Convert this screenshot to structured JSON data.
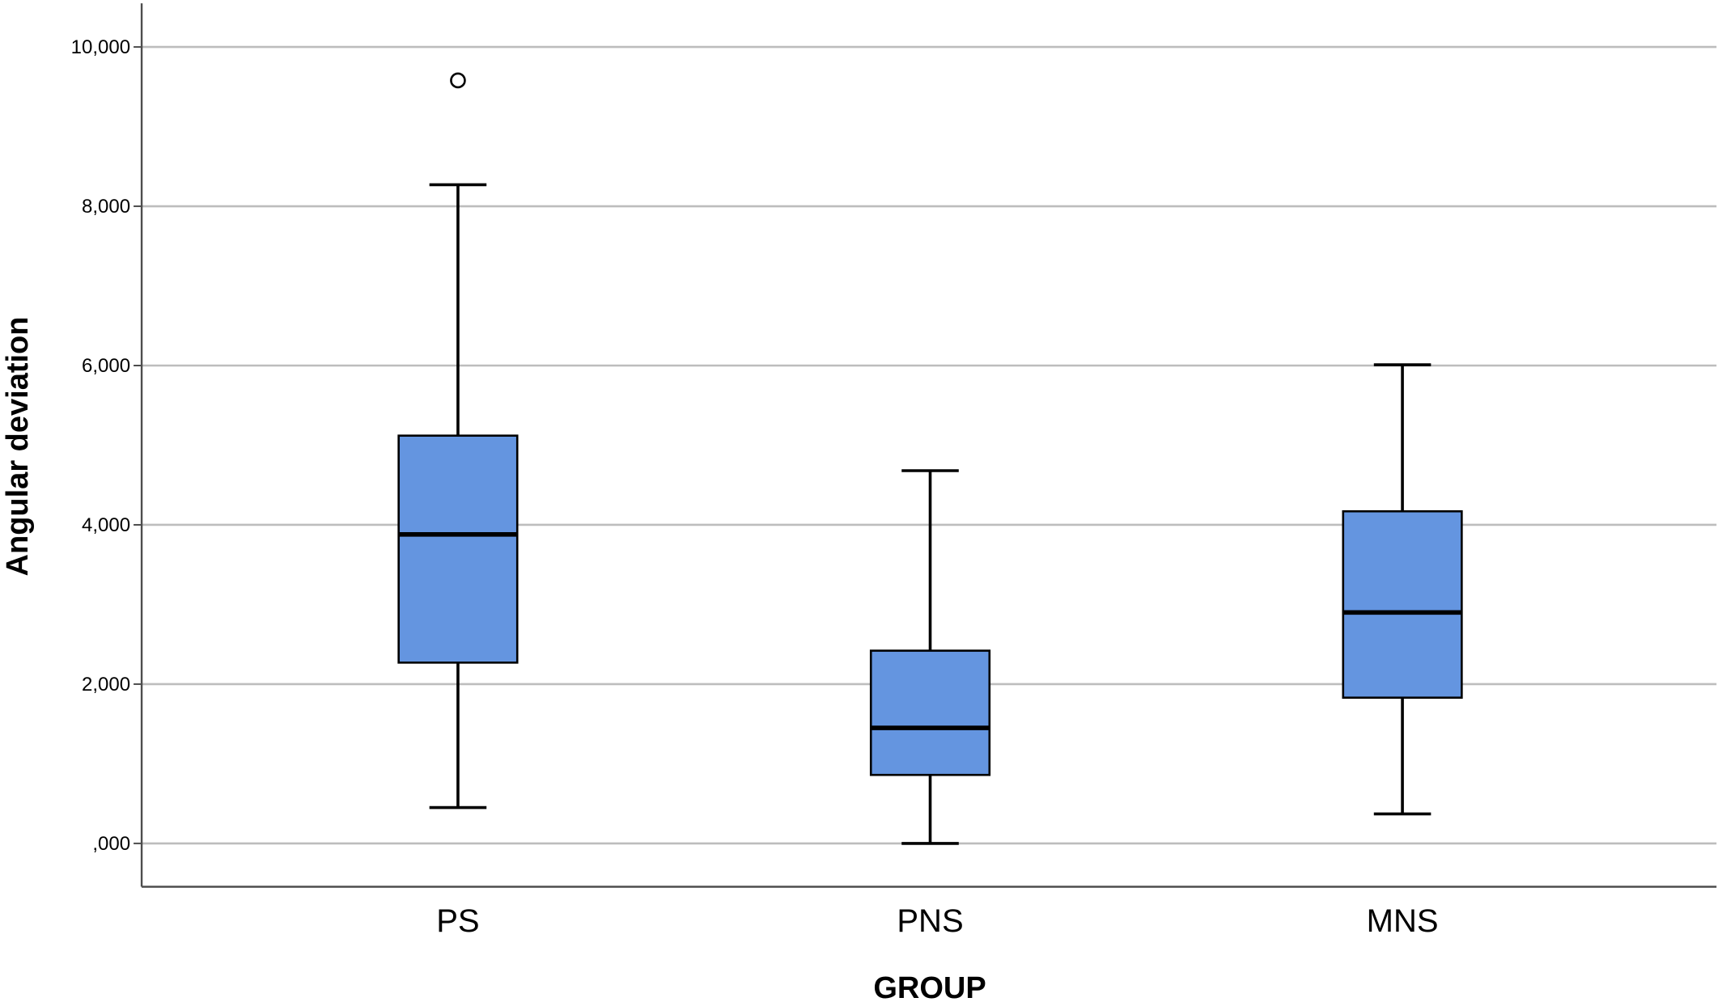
{
  "chart_data": {
    "type": "boxplot",
    "title": "",
    "xlabel": "GROUP",
    "ylabel": "Angular deviation",
    "ylim": [
      0,
      10.5
    ],
    "yticks": [
      {
        "value": 0,
        "label": ",000"
      },
      {
        "value": 2,
        "label": "2,000"
      },
      {
        "value": 4,
        "label": "4,000"
      },
      {
        "value": 6,
        "label": "6,000"
      },
      {
        "value": 8,
        "label": "8,000"
      },
      {
        "value": 10,
        "label": "10,000"
      }
    ],
    "grid": true,
    "categories": [
      "PS",
      "PNS",
      "MNS"
    ],
    "boxes": [
      {
        "category": "PS",
        "min": 0.45,
        "q1": 2.27,
        "median": 3.88,
        "q3": 5.12,
        "max": 8.27,
        "outliers": [
          9.58
        ]
      },
      {
        "category": "PNS",
        "min": 0.0,
        "q1": 0.86,
        "median": 1.45,
        "q3": 2.42,
        "max": 4.68,
        "outliers": []
      },
      {
        "category": "MNS",
        "min": 0.37,
        "q1": 1.83,
        "median": 2.9,
        "q3": 4.17,
        "max": 6.01,
        "outliers": []
      }
    ],
    "colors": {
      "box_fill": "#6495e0",
      "line": "#000000",
      "grid": "#bdbdbd",
      "axis": "#4d4d4d"
    }
  }
}
